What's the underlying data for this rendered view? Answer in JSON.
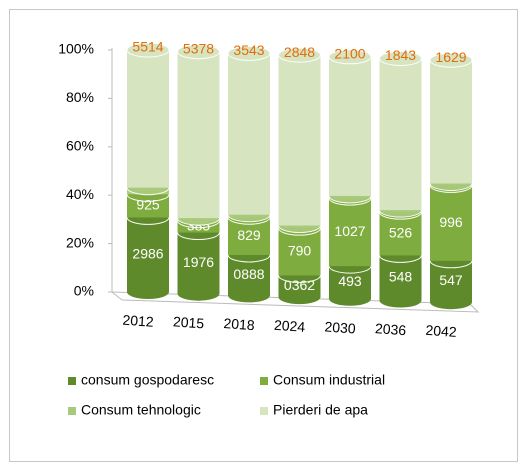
{
  "chart_data": {
    "type": "stacked-percent-cylinder",
    "categories": [
      "2012",
      "2015",
      "2018",
      "2024",
      "2030",
      "2036",
      "2042"
    ],
    "ylim": [
      0,
      100
    ],
    "yticks": [
      {
        "value": 0,
        "label": "0%"
      },
      {
        "value": 20,
        "label": "20%"
      },
      {
        "value": 40,
        "label": "40%"
      },
      {
        "value": 60,
        "label": "60%"
      },
      {
        "value": 80,
        "label": "80%"
      },
      {
        "value": 100,
        "label": "100%"
      }
    ],
    "series": [
      {
        "name": "consum gospodaresc",
        "color": "#5f8a2c",
        "label_color": "#ffffff",
        "values": [
          2986,
          1976,
          888,
          362,
          493,
          548,
          547
        ],
        "value_labels": [
          "2986",
          "1976",
          "0888",
          "0362",
          "493",
          "548",
          "547"
        ]
      },
      {
        "name": "Consum industrial",
        "color": "#7fac3e",
        "label_color": "#ffffff",
        "values": [
          925,
          385,
          829,
          790,
          1027,
          526,
          996
        ]
      },
      {
        "name": "Consum tehnologic",
        "color": "#a9c97c",
        "label_color": "#000000",
        "values": [
          266,
          82,
          54,
          43,
          32,
          25,
          25
        ]
      },
      {
        "name": "Pierderi de apa",
        "color": "#d6e4bf",
        "label_color": "#e46c0a",
        "values": [
          5514,
          5378,
          3543,
          2848,
          2100,
          1843,
          1629
        ]
      }
    ]
  }
}
